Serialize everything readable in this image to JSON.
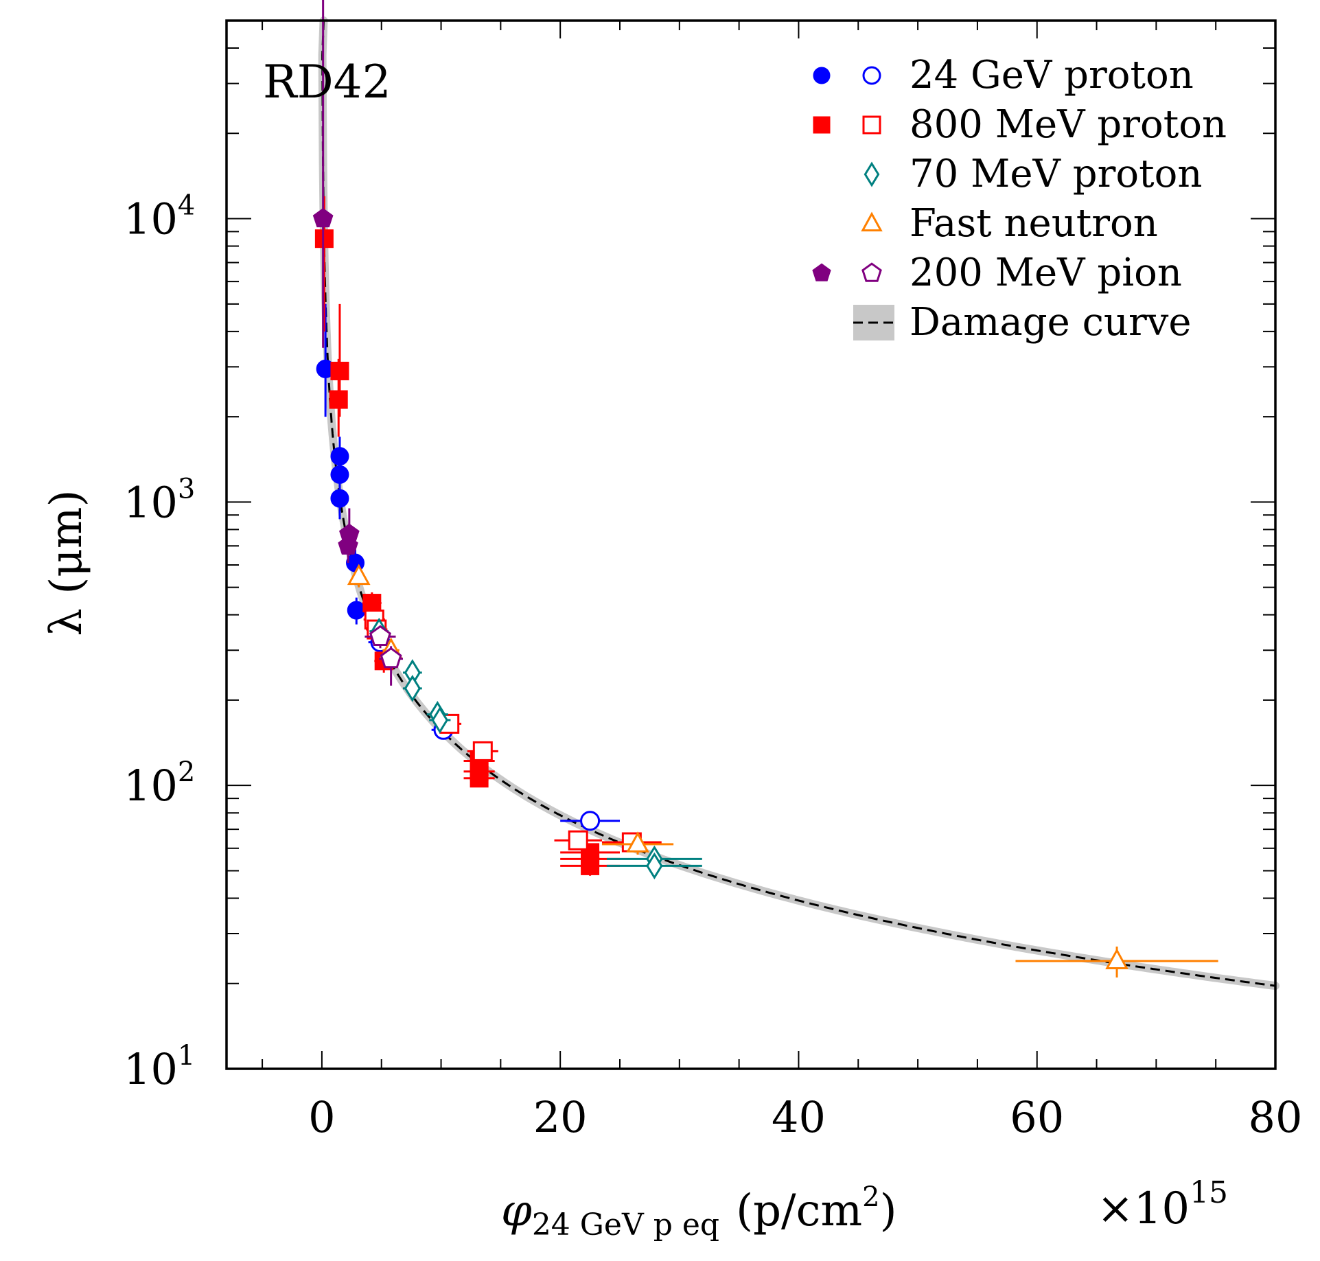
{
  "chart_data": {
    "type": "scatter",
    "experiment_label": "RD42",
    "x_axis": {
      "label_symbol": "φ",
      "label_subscript": "24 GeV p eq",
      "label_units": "(p/cm",
      "label_units_sup": "2",
      "label_units_close": ")",
      "range": [
        -8,
        80
      ],
      "ticks": [
        0,
        20,
        40,
        60,
        80
      ],
      "tick_labels": [
        "0",
        "20",
        "40",
        "60",
        "80"
      ],
      "multiplier_prefix": "×10",
      "multiplier_exp": "15",
      "scale": "linear"
    },
    "y_axis": {
      "label": "λ (μm)",
      "range": [
        10,
        50000
      ],
      "scale": "log",
      "major_ticks": [
        10,
        100,
        1000,
        10000
      ],
      "tick_label_base": "10",
      "tick_label_exps": [
        "1",
        "2",
        "3",
        "4"
      ]
    },
    "legend": {
      "position": "top-right",
      "entries": [
        {
          "key": "p24",
          "label": "24 GeV proton",
          "color": "#0000ff",
          "markers": [
            "filled-circle",
            "open-circle"
          ]
        },
        {
          "key": "p800",
          "label": "800 MeV proton",
          "color": "#ff0000",
          "markers": [
            "filled-square",
            "open-square"
          ]
        },
        {
          "key": "p70",
          "label": "70 MeV proton",
          "color": "#008080",
          "markers": [
            "open-diamond"
          ]
        },
        {
          "key": "neutron",
          "label": "Fast neutron",
          "color": "#ff8000",
          "markers": [
            "open-triangle"
          ]
        },
        {
          "key": "pion",
          "label": "200 MeV pion",
          "color": "#800080",
          "markers": [
            "filled-pentagon",
            "open-pentagon"
          ]
        },
        {
          "key": "curve",
          "label": "Damage curve",
          "color": "#000000",
          "markers": [
            "dashed-line-band"
          ]
        }
      ]
    },
    "damage_curve": {
      "formula": "lambda = 1 / (1/lambda0 + k*phi)",
      "lambda0_um": 1000000,
      "k_per_1e15": 0.000637,
      "band_color": "#c8c8c8"
    },
    "series": [
      {
        "name": "24 GeV proton (filled)",
        "color": "#0000ff",
        "marker": "circle",
        "filled": true,
        "points": [
          {
            "x": 0.3,
            "y": 2950,
            "xerr": 0,
            "ylo": 2000,
            "yhi": 5000
          },
          {
            "x": 1.5,
            "y": 1450,
            "xerr": 0,
            "ylo": 1200,
            "yhi": 1700
          },
          {
            "x": 1.5,
            "y": 1250,
            "xerr": 0,
            "ylo": 1050,
            "yhi": 1450
          },
          {
            "x": 1.5,
            "y": 1030,
            "xerr": 0,
            "ylo": 870,
            "yhi": 1200
          },
          {
            "x": 2.8,
            "y": 610,
            "xerr": 0,
            "ylo": 540,
            "yhi": 680
          },
          {
            "x": 2.9,
            "y": 415,
            "xerr": 0,
            "ylo": 370,
            "yhi": 460
          }
        ]
      },
      {
        "name": "24 GeV proton (open)",
        "color": "#0000ff",
        "marker": "circle",
        "filled": false,
        "points": [
          {
            "x": 4.9,
            "y": 320,
            "xerr": 1.0,
            "ylo": 300,
            "yhi": 345
          },
          {
            "x": 10.2,
            "y": 157,
            "xerr": 1.0,
            "ylo": 147,
            "yhi": 167
          },
          {
            "x": 22.5,
            "y": 75,
            "xerr": 2.5,
            "ylo": 71,
            "yhi": 79
          }
        ]
      },
      {
        "name": "800 MeV proton (filled)",
        "color": "#ff0000",
        "marker": "square",
        "filled": true,
        "points": [
          {
            "x": 0.2,
            "y": 8500,
            "xerr": 0,
            "ylo": 4000,
            "yhi": 12000
          },
          {
            "x": 1.5,
            "y": 2900,
            "xerr": 0,
            "ylo": 2000,
            "yhi": 5000
          },
          {
            "x": 1.4,
            "y": 2300,
            "xerr": 0,
            "ylo": 1700,
            "yhi": 3200
          },
          {
            "x": 4.2,
            "y": 440,
            "xerr": 0.8,
            "ylo": 400,
            "yhi": 480
          },
          {
            "x": 5.2,
            "y": 275,
            "xerr": 0.8,
            "ylo": 250,
            "yhi": 300
          },
          {
            "x": 13.2,
            "y": 122,
            "xerr": 1.3,
            "ylo": 113,
            "yhi": 131
          },
          {
            "x": 13.2,
            "y": 112,
            "xerr": 1.3,
            "ylo": 104,
            "yhi": 120
          },
          {
            "x": 13.2,
            "y": 106,
            "xerr": 1.3,
            "ylo": 99,
            "yhi": 113
          },
          {
            "x": 22.5,
            "y": 58,
            "xerr": 2.5,
            "ylo": 54,
            "yhi": 62
          },
          {
            "x": 22.5,
            "y": 55,
            "xerr": 2.5,
            "ylo": 51,
            "yhi": 59
          },
          {
            "x": 22.5,
            "y": 52,
            "xerr": 2.5,
            "ylo": 48,
            "yhi": 56
          }
        ]
      },
      {
        "name": "800 MeV proton (open)",
        "color": "#ff0000",
        "marker": "square",
        "filled": false,
        "points": [
          {
            "x": 4.4,
            "y": 385,
            "xerr": 0.9,
            "ylo": 360,
            "yhi": 410
          },
          {
            "x": 4.6,
            "y": 355,
            "xerr": 0.9,
            "ylo": 330,
            "yhi": 380
          },
          {
            "x": 10.7,
            "y": 165,
            "xerr": 1.0,
            "ylo": 155,
            "yhi": 175
          },
          {
            "x": 13.5,
            "y": 132,
            "xerr": 1.3,
            "ylo": 124,
            "yhi": 140
          },
          {
            "x": 21.5,
            "y": 64,
            "xerr": 2.0,
            "ylo": 60,
            "yhi": 68
          },
          {
            "x": 26.0,
            "y": 63,
            "xerr": 2.5,
            "ylo": 59,
            "yhi": 67
          }
        ]
      },
      {
        "name": "70 MeV proton",
        "color": "#008080",
        "marker": "diamond",
        "filled": false,
        "points": [
          {
            "x": 4.8,
            "y": 350,
            "xerr": 0.8,
            "ylo": 325,
            "yhi": 375
          },
          {
            "x": 7.6,
            "y": 250,
            "xerr": 0.8,
            "ylo": 232,
            "yhi": 268
          },
          {
            "x": 7.6,
            "y": 220,
            "xerr": 0.8,
            "ylo": 205,
            "yhi": 235
          },
          {
            "x": 9.7,
            "y": 178,
            "xerr": 0.9,
            "ylo": 167,
            "yhi": 189
          },
          {
            "x": 9.9,
            "y": 170,
            "xerr": 0.9,
            "ylo": 160,
            "yhi": 180
          },
          {
            "x": 27.9,
            "y": 55,
            "xerr": 4.0,
            "ylo": 51,
            "yhi": 59
          },
          {
            "x": 27.9,
            "y": 52,
            "xerr": 4.0,
            "ylo": 48,
            "yhi": 56
          }
        ]
      },
      {
        "name": "Fast neutron",
        "color": "#ff8000",
        "marker": "triangle",
        "filled": false,
        "points": [
          {
            "x": 3.1,
            "y": 545,
            "xerr": 0,
            "ylo": 500,
            "yhi": 590
          },
          {
            "x": 5.8,
            "y": 300,
            "xerr": 0.7,
            "ylo": 280,
            "yhi": 320
          },
          {
            "x": 26.5,
            "y": 62,
            "xerr": 3.0,
            "ylo": 57,
            "yhi": 67
          },
          {
            "x": 66.7,
            "y": 24,
            "xerr": 8.5,
            "ylo": 21,
            "yhi": 27
          }
        ]
      },
      {
        "name": "200 MeV pion (filled)",
        "color": "#800080",
        "marker": "pentagon",
        "filled": true,
        "points": [
          {
            "x": 0.1,
            "y": 10000,
            "xerr": 0,
            "ylo": 3500,
            "yhi": 60000
          },
          {
            "x": 2.3,
            "y": 770,
            "xerr": 0,
            "ylo": 650,
            "yhi": 950
          },
          {
            "x": 2.2,
            "y": 700,
            "xerr": 0,
            "ylo": 610,
            "yhi": 800
          }
        ]
      },
      {
        "name": "200 MeV pion (open)",
        "color": "#800080",
        "marker": "pentagon",
        "filled": false,
        "points": [
          {
            "x": 4.9,
            "y": 335,
            "xerr": 1.3,
            "ylo": 305,
            "yhi": 365
          },
          {
            "x": 5.8,
            "y": 280,
            "xerr": 1.0,
            "ylo": 225,
            "yhi": 310
          }
        ]
      }
    ]
  }
}
